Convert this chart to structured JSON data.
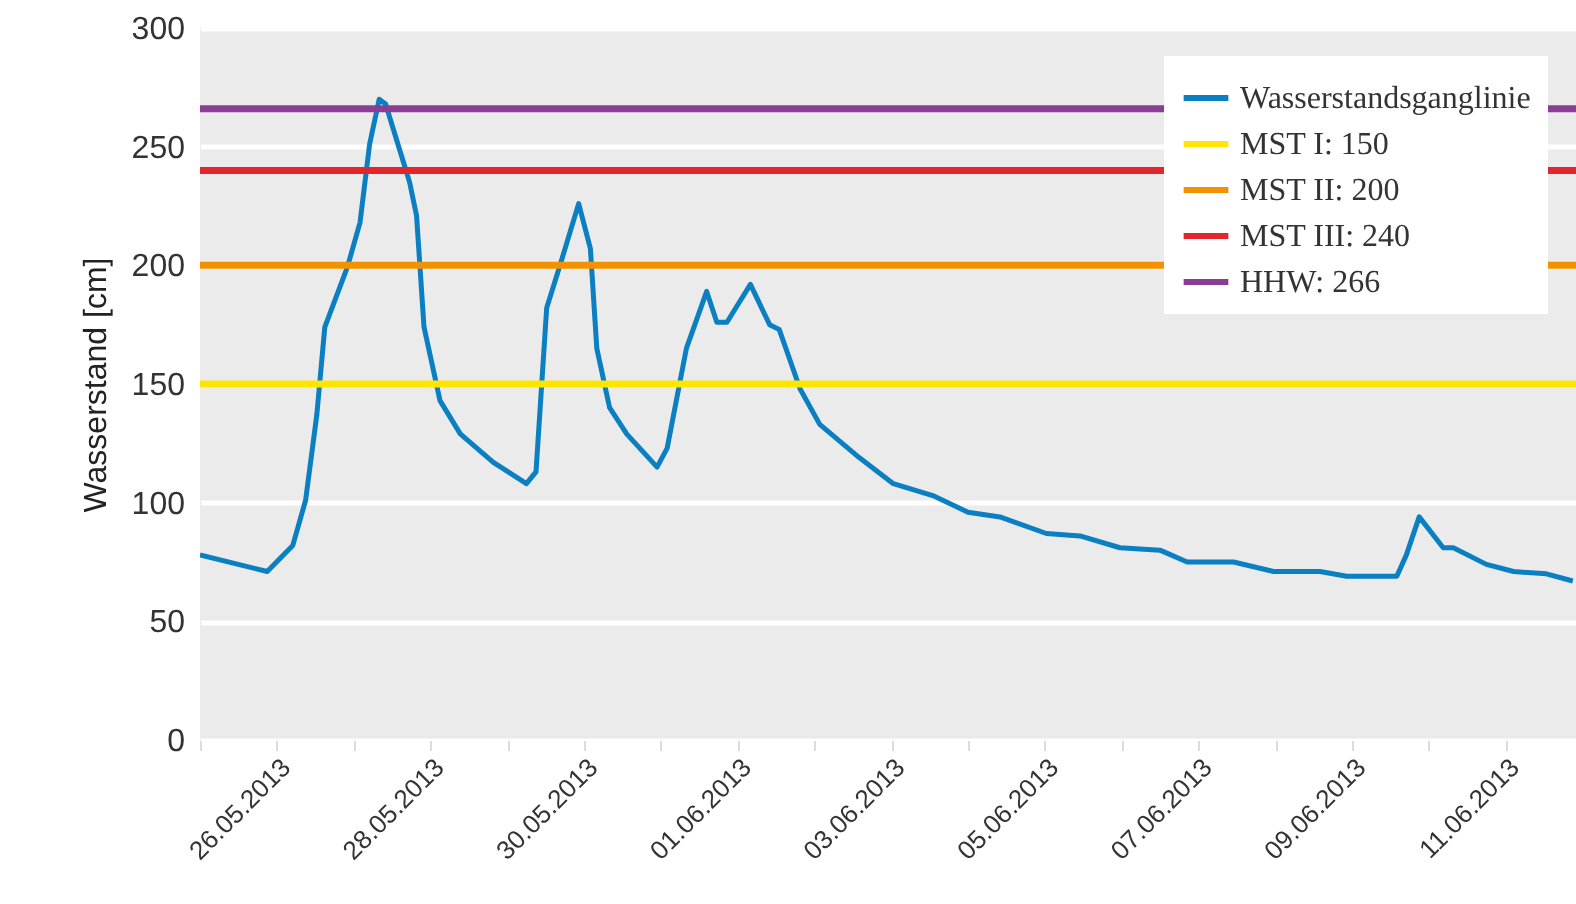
{
  "chart_data": {
    "type": "line",
    "ylabel": "Wasserstand [cm]",
    "x": [
      "2013-05-25T00:00",
      "2013-05-25T21:00",
      "2013-05-26T05:00",
      "2013-05-26T09:00",
      "2013-05-26T12:30",
      "2013-05-26T15:00",
      "2013-05-26T22:00",
      "2013-05-27T02:00",
      "2013-05-27T05:00",
      "2013-05-27T08:00",
      "2013-05-27T10:00",
      "2013-05-27T17:30",
      "2013-05-27T19:40",
      "2013-05-27T22:00",
      "2013-05-28T03:00",
      "2013-05-28T09:20",
      "2013-05-28T19:40",
      "2013-05-29T06:00",
      "2013-05-29T09:00",
      "2013-05-29T12:20",
      "2013-05-29T16:30",
      "2013-05-29T22:20",
      "2013-05-30T02:00",
      "2013-05-30T04:00",
      "2013-05-30T08:00",
      "2013-05-30T13:20",
      "2013-05-30T22:50",
      "2013-05-31T02:00",
      "2013-05-31T08:00",
      "2013-05-31T14:20",
      "2013-05-31T17:30",
      "2013-05-31T20:40",
      "2013-06-01T04:00",
      "2013-06-01T10:00",
      "2013-06-01T13:00",
      "2013-06-01T19:30",
      "2013-06-02T01:40",
      "2013-06-02T14:00",
      "2013-06-03T00:40",
      "2013-06-03T13:00",
      "2013-06-04T00:00",
      "2013-06-04T10:00",
      "2013-06-05T00:30",
      "2013-06-05T11:00",
      "2013-06-05T23:30",
      "2013-06-06T12:00",
      "2013-06-06T20:30",
      "2013-06-07T11:00",
      "2013-06-07T23:30",
      "2013-06-08T14:00",
      "2013-06-08T22:20",
      "2013-06-09T14:00",
      "2013-06-09T17:00",
      "2013-06-09T21:00",
      "2013-06-10T04:30",
      "2013-06-10T07:40",
      "2013-06-10T18:00",
      "2013-06-11T02:30",
      "2013-06-11T12:45",
      "2013-06-11T21:00"
    ],
    "series": [
      {
        "name": "Wasserstandsganglinie",
        "color": "#0a7fc1",
        "values": [
          78,
          71,
          82,
          101,
          137,
          174,
          199,
          218,
          251,
          270,
          268,
          235,
          221,
          174,
          143,
          129,
          117,
          108,
          113,
          182,
          200,
          226,
          207,
          165,
          140,
          129,
          115,
          123,
          165,
          189,
          176,
          176,
          192,
          175,
          173,
          148,
          133,
          119,
          108,
          103,
          96,
          94,
          87,
          86,
          81,
          80,
          75,
          75,
          71,
          71,
          69,
          69,
          78,
          94,
          81,
          81,
          74,
          71,
          70,
          67
        ]
      }
    ],
    "ylim": [
      0,
      300
    ],
    "yticks": [
      0,
      50,
      100,
      150,
      200,
      250,
      300
    ],
    "xlim": [
      "2013-05-25",
      "2013-06-11T22:00"
    ],
    "xticks": [
      {
        "value": "2013-05-25",
        "label": null
      },
      {
        "value": "2013-05-26",
        "label": "26.05.2013"
      },
      {
        "value": "2013-05-27",
        "label": null
      },
      {
        "value": "2013-05-28",
        "label": "28.05.2013"
      },
      {
        "value": "2013-05-29",
        "label": null
      },
      {
        "value": "2013-05-30",
        "label": "30.05.2013"
      },
      {
        "value": "2013-05-31",
        "label": null
      },
      {
        "value": "2013-06-01",
        "label": "01.06.2013"
      },
      {
        "value": "2013-06-02",
        "label": null
      },
      {
        "value": "2013-06-03",
        "label": "03.06.2013"
      },
      {
        "value": "2013-06-04",
        "label": null
      },
      {
        "value": "2013-06-05",
        "label": "05.06.2013"
      },
      {
        "value": "2013-06-06",
        "label": null
      },
      {
        "value": "2013-06-07",
        "label": "07.06.2013"
      },
      {
        "value": "2013-06-08",
        "label": null
      },
      {
        "value": "2013-06-09",
        "label": "09.06.2013"
      },
      {
        "value": "2013-06-10",
        "label": null
      },
      {
        "value": "2013-06-11",
        "label": "11.06.2013"
      }
    ],
    "ref_lines": [
      {
        "axis": "y",
        "value": 150,
        "label": "MST I: 150",
        "color": "#ffe600"
      },
      {
        "axis": "y",
        "value": 200,
        "label": "MST II: 200",
        "color": "#f39200"
      },
      {
        "axis": "y",
        "value": 240,
        "label": "MST III: 240",
        "color": "#e3262e"
      },
      {
        "axis": "y",
        "value": 266,
        "label": "HHW: 266",
        "color": "#8a3d92"
      }
    ],
    "grid": "y",
    "legend": "top right"
  }
}
